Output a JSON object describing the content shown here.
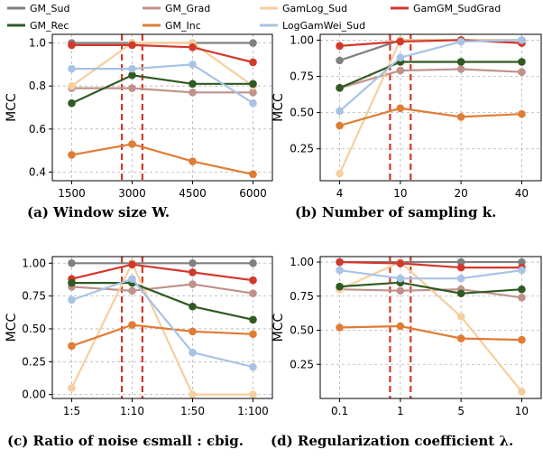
{
  "legend": [
    {
      "key": "gm_sud",
      "label": "GM_Sud"
    },
    {
      "key": "gm_grad",
      "label": "GM_Grad"
    },
    {
      "key": "gamlog_sud",
      "label": "GamLog_Sud"
    },
    {
      "key": "gamgm_sudgrad",
      "label": "GamGM_SudGrad"
    },
    {
      "key": "gm_rec",
      "label": "GM_Rec"
    },
    {
      "key": "gm_inc",
      "label": "GM_Inc"
    },
    {
      "key": "loggamwei_sud",
      "label": "LogGamWei_Sud"
    }
  ],
  "colors": {
    "gm_sud": "#808080",
    "gm_grad": "#c0928b",
    "gamlog_sud": "#f5cf9e",
    "gamgm_sudgrad": "#d1392b",
    "gm_rec": "#2f5a22",
    "gm_inc": "#e07c34",
    "loggamwei_sud": "#a8c3e5",
    "highlight": "#d1392b"
  },
  "chart_data": [
    {
      "type": "line",
      "caption": "(a) Window size W.",
      "ylabel": "MCC",
      "x": [
        "1500",
        "3000",
        "4500",
        "6000"
      ],
      "ylim": [
        0.36,
        1.04
      ],
      "yticks": [
        "0.4",
        "0.6",
        "0.8",
        "1.0"
      ],
      "ytick_values": [
        0.4,
        0.6,
        0.8,
        1.0
      ],
      "highlight_index": 1,
      "series": [
        {
          "key": "gm_sud",
          "name": "GM_Sud",
          "values": [
            1.0,
            1.0,
            1.0,
            1.0
          ]
        },
        {
          "key": "gm_grad",
          "name": "GM_Grad",
          "values": [
            0.79,
            0.79,
            0.77,
            0.77
          ]
        },
        {
          "key": "gamlog_sud",
          "name": "GamLog_Sud",
          "values": [
            0.8,
            1.0,
            1.0,
            0.8
          ]
        },
        {
          "key": "gamgm_sudgrad",
          "name": "GamGM_SudGrad",
          "values": [
            0.99,
            0.99,
            0.98,
            0.91
          ]
        },
        {
          "key": "gm_rec",
          "name": "GM_Rec",
          "values": [
            0.72,
            0.85,
            0.81,
            0.81
          ]
        },
        {
          "key": "gm_inc",
          "name": "GM_Inc",
          "values": [
            0.48,
            0.53,
            0.45,
            0.39
          ]
        },
        {
          "key": "loggamwei_sud",
          "name": "LogGamWei_Sud",
          "values": [
            0.88,
            0.88,
            0.9,
            0.72
          ]
        }
      ]
    },
    {
      "type": "line",
      "caption": "(b) Number of sampling k.",
      "ylabel": "MCC",
      "x": [
        "4",
        "10",
        "20",
        "40"
      ],
      "ylim": [
        0.03,
        1.04
      ],
      "yticks": [
        "0.25",
        "0.50",
        "0.75",
        "1.00"
      ],
      "ytick_values": [
        0.25,
        0.5,
        0.75,
        1.0
      ],
      "highlight_index": 1,
      "series": [
        {
          "key": "gm_sud",
          "name": "GM_Sud",
          "values": [
            0.86,
            1.0,
            1.0,
            1.0
          ]
        },
        {
          "key": "gm_grad",
          "name": "GM_Grad",
          "values": [
            0.67,
            0.79,
            0.8,
            0.78
          ]
        },
        {
          "key": "gamlog_sud",
          "name": "GamLog_Sud",
          "values": [
            0.08,
            1.0,
            1.0,
            1.0
          ]
        },
        {
          "key": "gamgm_sudgrad",
          "name": "GamGM_SudGrad",
          "values": [
            0.96,
            0.99,
            1.0,
            0.98
          ]
        },
        {
          "key": "gm_rec",
          "name": "GM_Rec",
          "values": [
            0.67,
            0.85,
            0.85,
            0.85
          ]
        },
        {
          "key": "gm_inc",
          "name": "GM_Inc",
          "values": [
            0.41,
            0.53,
            0.47,
            0.49
          ]
        },
        {
          "key": "loggamwei_sud",
          "name": "LogGamWei_Sud",
          "values": [
            0.51,
            0.88,
            0.99,
            1.0
          ]
        }
      ]
    },
    {
      "type": "line",
      "caption": "(c) Ratio of noise ϵsmall : ϵbig.",
      "ylabel": "MCC",
      "x": [
        "1:5",
        "1:10",
        "1:50",
        "1:100"
      ],
      "ylim": [
        -0.03,
        1.05
      ],
      "yticks": [
        "0.00",
        "0.25",
        "0.50",
        "0.75",
        "1.00"
      ],
      "ytick_values": [
        0.0,
        0.25,
        0.5,
        0.75,
        1.0
      ],
      "highlight_index": 1,
      "series": [
        {
          "key": "gm_sud",
          "name": "GM_Sud",
          "values": [
            1.0,
            1.0,
            1.0,
            1.0
          ]
        },
        {
          "key": "gm_grad",
          "name": "GM_Grad",
          "values": [
            0.82,
            0.79,
            0.84,
            0.77
          ]
        },
        {
          "key": "gamlog_sud",
          "name": "GamLog_Sud",
          "values": [
            0.05,
            1.0,
            0.0,
            0.0
          ]
        },
        {
          "key": "gamgm_sudgrad",
          "name": "GamGM_SudGrad",
          "values": [
            0.88,
            0.99,
            0.93,
            0.87
          ]
        },
        {
          "key": "gm_rec",
          "name": "GM_Rec",
          "values": [
            0.85,
            0.85,
            0.67,
            0.57
          ]
        },
        {
          "key": "gm_inc",
          "name": "GM_Inc",
          "values": [
            0.37,
            0.53,
            0.48,
            0.46
          ]
        },
        {
          "key": "loggamwei_sud",
          "name": "LogGamWei_Sud",
          "values": [
            0.72,
            0.88,
            0.32,
            0.21
          ]
        }
      ]
    },
    {
      "type": "line",
      "caption": "(d) Regularization coefficient λ.",
      "ylabel": "MCC",
      "x": [
        "0.1",
        "1",
        "5",
        "10"
      ],
      "ylim": [
        0.0,
        1.04
      ],
      "yticks": [
        "0.25",
        "0.50",
        "0.75",
        "1.00"
      ],
      "ytick_values": [
        0.25,
        0.5,
        0.75,
        1.0
      ],
      "highlight_index": 1,
      "series": [
        {
          "key": "gm_sud",
          "name": "GM_Sud",
          "values": [
            1.0,
            1.0,
            1.0,
            1.0
          ]
        },
        {
          "key": "gm_grad",
          "name": "GM_Grad",
          "values": [
            0.8,
            0.79,
            0.8,
            0.74
          ]
        },
        {
          "key": "gamlog_sud",
          "name": "GamLog_Sud",
          "values": [
            0.8,
            1.0,
            0.6,
            0.05
          ]
        },
        {
          "key": "gamgm_sudgrad",
          "name": "GamGM_SudGrad",
          "values": [
            1.0,
            0.99,
            0.96,
            0.96
          ]
        },
        {
          "key": "gm_rec",
          "name": "GM_Rec",
          "values": [
            0.82,
            0.85,
            0.77,
            0.8
          ]
        },
        {
          "key": "gm_inc",
          "name": "GM_Inc",
          "values": [
            0.52,
            0.53,
            0.44,
            0.43
          ]
        },
        {
          "key": "loggamwei_sud",
          "name": "LogGamWei_Sud",
          "values": [
            0.94,
            0.88,
            0.88,
            0.94
          ]
        }
      ]
    }
  ]
}
